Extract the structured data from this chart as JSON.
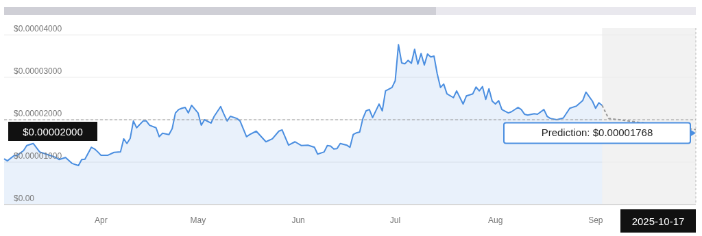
{
  "chart_data": {
    "type": "area",
    "x": [
      "2025-03-02",
      "2025-03-03",
      "2025-03-05",
      "2025-03-06",
      "2025-03-08",
      "2025-03-09",
      "2025-03-11",
      "2025-03-13",
      "2025-03-15",
      "2025-03-18",
      "2025-03-19",
      "2025-03-21",
      "2025-03-23",
      "2025-03-25",
      "2025-03-26",
      "2025-03-27",
      "2025-03-29",
      "2025-03-30",
      "2025-03-31",
      "2025-04-01",
      "2025-04-03",
      "2025-04-05",
      "2025-04-07",
      "2025-04-08",
      "2025-04-09",
      "2025-04-10",
      "2025-04-11",
      "2025-04-12",
      "2025-04-14",
      "2025-04-15",
      "2025-04-16",
      "2025-04-18",
      "2025-04-19",
      "2025-04-20",
      "2025-04-22",
      "2025-04-23",
      "2025-04-24",
      "2025-04-25",
      "2025-04-26",
      "2025-04-27",
      "2025-04-28",
      "2025-04-29",
      "2025-05-01",
      "2025-05-02",
      "2025-05-03",
      "2025-05-05",
      "2025-05-06",
      "2025-05-08",
      "2025-05-09",
      "2025-05-10",
      "2025-05-11",
      "2025-05-13",
      "2025-05-14",
      "2025-05-16",
      "2025-05-17",
      "2025-05-19",
      "2025-05-22",
      "2025-05-24",
      "2025-05-26",
      "2025-05-27",
      "2025-05-29",
      "2025-05-31",
      "2025-06-02",
      "2025-06-04",
      "2025-06-06",
      "2025-06-07",
      "2025-06-09",
      "2025-06-10",
      "2025-06-11",
      "2025-06-12",
      "2025-06-13",
      "2025-06-14",
      "2025-06-16",
      "2025-06-17",
      "2025-06-18",
      "2025-06-19",
      "2025-06-20",
      "2025-06-21",
      "2025-06-22",
      "2025-06-23",
      "2025-06-24",
      "2025-06-26",
      "2025-06-27",
      "2025-06-28",
      "2025-06-30",
      "2025-07-01",
      "2025-07-02",
      "2025-07-03",
      "2025-07-04",
      "2025-07-05",
      "2025-07-06",
      "2025-07-07",
      "2025-07-08",
      "2025-07-09",
      "2025-07-10",
      "2025-07-11",
      "2025-07-12",
      "2025-07-13",
      "2025-07-14",
      "2025-07-15",
      "2025-07-16",
      "2025-07-17",
      "2025-07-19",
      "2025-07-20",
      "2025-07-22",
      "2025-07-23",
      "2025-07-25",
      "2025-07-26",
      "2025-07-27",
      "2025-07-28",
      "2025-07-29",
      "2025-07-30",
      "2025-07-31",
      "2025-08-01",
      "2025-08-02",
      "2025-08-03",
      "2025-08-05",
      "2025-08-06",
      "2025-08-08",
      "2025-08-09",
      "2025-08-10",
      "2025-08-11",
      "2025-08-13",
      "2025-08-14",
      "2025-08-16",
      "2025-08-17",
      "2025-08-18",
      "2025-08-20",
      "2025-08-22",
      "2025-08-24",
      "2025-08-26",
      "2025-08-28",
      "2025-08-29",
      "2025-08-31",
      "2025-09-01",
      "2025-09-02",
      "2025-09-03"
    ],
    "series": [
      {
        "color": "#4a8ee0",
        "values": [
          1.08e-05,
          1.03e-05,
          1.15e-05,
          1.16e-05,
          1.27e-05,
          1.39e-05,
          1.44e-05,
          1.24e-05,
          1.19e-05,
          1.11e-05,
          1.06e-05,
          1.11e-05,
          9.7e-06,
          9.2e-06,
          1.06e-05,
          1.07e-05,
          1.35e-05,
          1.31e-05,
          1.24e-05,
          1.16e-05,
          1.16e-05,
          1.23e-05,
          1.24e-05,
          1.55e-05,
          1.44e-05,
          1.56e-05,
          1.97e-05,
          1.81e-05,
          1.97e-05,
          1.97e-05,
          1.87e-05,
          1.81e-05,
          1.6e-05,
          1.68e-05,
          1.65e-05,
          1.79e-05,
          2.16e-05,
          2.24e-05,
          2.27e-05,
          2.29e-05,
          2.16e-05,
          2.34e-05,
          2.16e-05,
          1.87e-05,
          2e-05,
          1.92e-05,
          2.08e-05,
          2.31e-05,
          2.13e-05,
          1.97e-05,
          2.08e-05,
          2.03e-05,
          1.97e-05,
          1.6e-05,
          1.65e-05,
          1.73e-05,
          1.48e-05,
          1.55e-05,
          1.73e-05,
          1.76e-05,
          1.4e-05,
          1.48e-05,
          1.39e-05,
          1.4e-05,
          1.35e-05,
          1.19e-05,
          1.24e-05,
          1.39e-05,
          1.38e-05,
          1.31e-05,
          1.32e-05,
          1.44e-05,
          1.4e-05,
          1.35e-05,
          1.65e-05,
          1.69e-05,
          1.71e-05,
          2.03e-05,
          2.21e-05,
          2.24e-05,
          2.05e-05,
          2.37e-05,
          2.21e-05,
          2.68e-05,
          2.76e-05,
          2.92e-05,
          3.77e-05,
          3.34e-05,
          3.32e-05,
          3.4e-05,
          3.33e-05,
          3.66e-05,
          3.31e-05,
          3.56e-05,
          3.29e-05,
          3.55e-05,
          3.48e-05,
          3.5e-05,
          3.08e-05,
          2.76e-05,
          2.84e-05,
          2.61e-05,
          2.52e-05,
          2.68e-05,
          2.37e-05,
          2.56e-05,
          2.61e-05,
          2.77e-05,
          2.68e-05,
          2.78e-05,
          2.48e-05,
          2.73e-05,
          2.44e-05,
          2.37e-05,
          2.45e-05,
          2.24e-05,
          2.16e-05,
          2.19e-05,
          2.29e-05,
          2.24e-05,
          2.13e-05,
          2.11e-05,
          2.14e-05,
          2.13e-05,
          2.24e-05,
          2.08e-05,
          2.03e-05,
          2e-05,
          2.04e-05,
          2.27e-05,
          2.32e-05,
          2.45e-05,
          2.65e-05,
          2.44e-05,
          2.27e-05,
          2.4e-05,
          2.34e-05
        ]
      },
      {
        "type": "line",
        "color": "#999999",
        "line_style": "dashed",
        "x": [
          "2025-09-03",
          "2025-09-05",
          "2025-10-02"
        ],
        "values": [
          2.34e-05,
          2.03e-05,
          1.768e-05
        ]
      }
    ],
    "xlim": [
      "2025-03-02",
      "2025-10-02"
    ],
    "xticks": [
      {
        "value": "2025-04-01",
        "label": "Apr"
      },
      {
        "value": "2025-05-01",
        "label": "May"
      },
      {
        "value": "2025-06-01",
        "label": "Jun"
      },
      {
        "value": "2025-07-01",
        "label": "Jul"
      },
      {
        "value": "2025-08-01",
        "label": "Aug"
      },
      {
        "value": "2025-09-01",
        "label": "Sep"
      }
    ],
    "ylim": [
      0,
      4e-05
    ],
    "yticks": [
      {
        "value": 0,
        "label": "$0.00"
      },
      {
        "value": 1e-05,
        "label": "$0.00001000"
      },
      {
        "value": 2e-05,
        "label": "$0.00002000"
      },
      {
        "value": 3e-05,
        "label": "$0.00003000"
      },
      {
        "value": 4e-05,
        "label": "$0.00004000"
      }
    ],
    "grid": "y",
    "ref_lines": [
      {
        "axis": "y",
        "value": 2e-05,
        "label": "$0.00002000",
        "color": "#999999",
        "line_style": "dashed"
      }
    ],
    "bands": [
      {
        "axis": "x",
        "from": "2025-09-03",
        "to": "2025-10-02",
        "color": "#f2f2f2"
      }
    ],
    "annotations": [
      "Prediction: $0.00001768",
      "2025-10-17"
    ]
  }
}
